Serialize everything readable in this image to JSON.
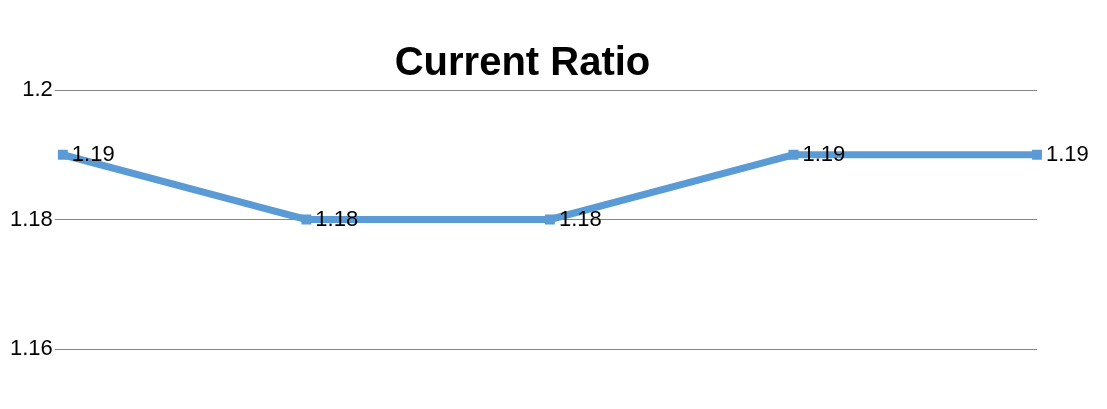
{
  "chart_data": {
    "type": "line",
    "title": "Current Ratio",
    "categories": [
      null,
      null,
      null,
      null,
      null
    ],
    "series": [
      {
        "color": "#5b9bd5",
        "values": [
          1.19,
          1.18,
          1.18,
          1.19,
          1.19
        ]
      }
    ],
    "ylim": [
      1.16,
      1.2
    ],
    "yticks": [
      1.16,
      1.18,
      1.2
    ],
    "grid": "y",
    "tick_labels": "y",
    "marker": "square",
    "data_labels": true,
    "legend": false
  }
}
